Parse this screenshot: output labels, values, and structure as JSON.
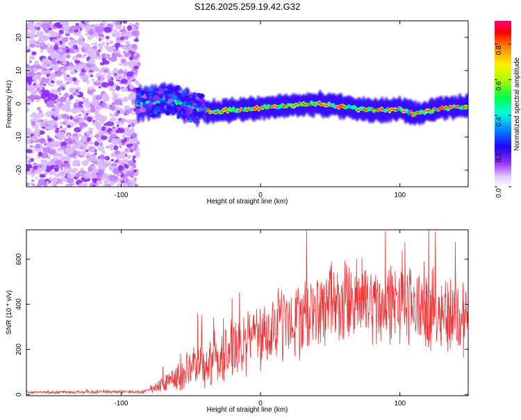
{
  "title": "S126.2025.259.19.42.G32",
  "chart_data": [
    {
      "type": "heatmap",
      "xlabel": "Height of straight line (km)",
      "ylabel": "Frequency (Hz)",
      "xlim": [
        -168,
        149
      ],
      "ylim": [
        -25,
        25
      ],
      "xticks": [
        -100,
        0,
        100
      ],
      "yticks": [
        -20,
        -10,
        0,
        10,
        20
      ],
      "xtick_labels": [
        "-100",
        "0",
        "100"
      ],
      "ytick_labels": [
        "-20",
        "-10",
        "0",
        "10",
        "20"
      ],
      "noise_region_km": [
        -168,
        -88
      ],
      "signal_track": {
        "x": [
          -88,
          -80,
          -70,
          -60,
          -50,
          -40,
          -30,
          -20,
          -10,
          0,
          10,
          20,
          30,
          40,
          50,
          60,
          70,
          80,
          90,
          100,
          110,
          120,
          130,
          140,
          149
        ],
        "y": [
          0,
          0.2,
          1.0,
          0.6,
          -0.8,
          -2.2,
          -2.2,
          -1.8,
          -1.6,
          -1.2,
          -1.0,
          -0.6,
          -0.2,
          0.0,
          -0.4,
          -0.8,
          -1.6,
          -1.8,
          -2.0,
          -1.5,
          -3.0,
          -2.5,
          -1.5,
          -1.0,
          -0.6
        ]
      },
      "colorbar": {
        "label": "Normalized spectral amplitude",
        "range": [
          0.0,
          0.93
        ],
        "ticks": [
          0.0,
          0.2,
          0.4,
          0.6,
          0.8
        ],
        "tick_labels": [
          "0.0",
          "0.2",
          "0.4",
          "0.6",
          "0.8"
        ]
      }
    },
    {
      "type": "line",
      "xlabel": "Height of straight line (km)",
      "ylabel": "SNR (10 * v/v)",
      "xlim": [
        -168,
        149
      ],
      "ylim": [
        -5,
        730
      ],
      "xticks": [
        -100,
        0,
        100
      ],
      "yticks": [
        0,
        200,
        400,
        600
      ],
      "xtick_labels": [
        "-100",
        "0",
        "100"
      ],
      "ytick_labels": [
        "0",
        "200",
        "400",
        "600"
      ],
      "series": [
        {
          "name": "SNR",
          "color": "#ee3333",
          "envelope_x": [
            -168,
            -85,
            -80,
            -70,
            -60,
            -50,
            -40,
            -30,
            -20,
            -10,
            0,
            10,
            20,
            30,
            40,
            50,
            60,
            70,
            80,
            90,
            100,
            110,
            120,
            130,
            140,
            149
          ],
          "envelope_mean": [
            10,
            12,
            18,
            45,
            80,
            110,
            140,
            170,
            200,
            230,
            260,
            290,
            320,
            350,
            370,
            390,
            400,
            410,
            400,
            400,
            395,
            390,
            385,
            370,
            350,
            340
          ],
          "envelope_spread": [
            5,
            8,
            15,
            40,
            70,
            90,
            110,
            120,
            130,
            140,
            150,
            160,
            170,
            170,
            170,
            175,
            180,
            185,
            180,
            175,
            175,
            175,
            175,
            175,
            175,
            170
          ]
        }
      ]
    }
  ]
}
